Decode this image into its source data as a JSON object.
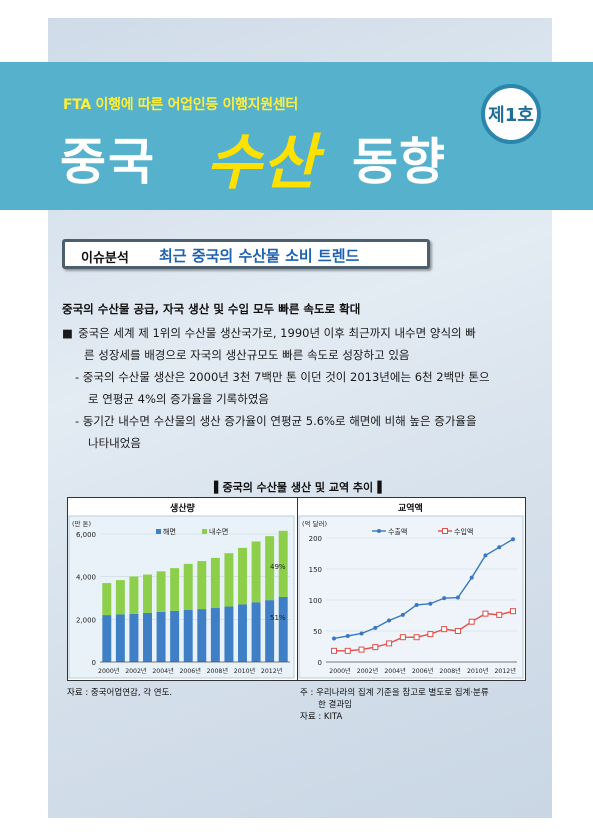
{
  "banner": {
    "subtitle": "FTA 이행에 따른 어업인등 이행지원센터",
    "title_part1": "중국",
    "title_part2": "수산",
    "title_part3": "동향",
    "issue_number": "제1호"
  },
  "section": {
    "label": "이슈분석",
    "title": "최근 중국의 수산물 소비 트렌드"
  },
  "body": {
    "headline": "중국의 수산물 공급, 자국 생산 및 수입 모두 빠른 속도로 확대",
    "bullet_marker": "■",
    "bullet_line1": "중국은 세계 제 1위의 수산물 생산국가로, 1990년 이후 최근까지 내수면 양식의 빠",
    "bullet_line2": "른 성장세를 배경으로 자국의 생산규모도 빠른 속도로 성장하고 있음",
    "sub1_line1": "- 중국의 수산물 생산은 2000년 3천 7백만 톤 이던 것이 2013년에는 6천 2백만 톤으",
    "sub1_line2": "로 연평균 4%의 증가율을 기록하였음",
    "sub2_line1": "- 동기간 내수면 수산물의 생산 증가율이 연평균 5.6%로 해면에 비해 높은 증가율을",
    "sub2_line2": "나타내었음"
  },
  "figure": {
    "title": "▌중국의 수산물 생산 및 교역 추이▐",
    "left_panel_title": "생산량",
    "right_panel_title": "교역액",
    "source_left": "자료 : 중국어업연감, 각 연도.",
    "note_right_line1": "주 : 우리나라의 집계 기준을 참고로 별도로 집계·분류",
    "note_right_line2": "한 결과임",
    "source_right": "자료 : KITA"
  },
  "chart_data": [
    {
      "type": "bar",
      "stacked": true,
      "title": "생산량",
      "ylabel": "(만 톤)",
      "ylim": [
        0,
        6000
      ],
      "yticks": [
        "0",
        "2,000",
        "4,000",
        "6,000"
      ],
      "categories": [
        "2000",
        "2001",
        "2002",
        "2003",
        "2004",
        "2005",
        "2006",
        "2007",
        "2008",
        "2009",
        "2010",
        "2011",
        "2012",
        "2013"
      ],
      "xtick_labels": [
        "2000년",
        "2002년",
        "2004년",
        "2006년",
        "2008년",
        "2010년",
        "2012년"
      ],
      "series": [
        {
          "name": "해면",
          "color": "#3f7fc6",
          "values": [
            2200,
            2230,
            2260,
            2300,
            2350,
            2400,
            2450,
            2480,
            2530,
            2600,
            2700,
            2800,
            2900,
            3050
          ]
        },
        {
          "name": "내수면",
          "color": "#8dcf4a",
          "values": [
            1500,
            1610,
            1750,
            1800,
            1900,
            2000,
            2150,
            2250,
            2350,
            2500,
            2650,
            2850,
            3000,
            3100
          ]
        }
      ],
      "annotations": [
        "49%",
        "51%"
      ],
      "legend": "top"
    },
    {
      "type": "line",
      "title": "교역액",
      "ylabel": "(억 달러)",
      "ylim": [
        0,
        200
      ],
      "yticks": [
        "0",
        "50",
        "100",
        "150",
        "200"
      ],
      "x": [
        "2000",
        "2001",
        "2002",
        "2003",
        "2004",
        "2005",
        "2006",
        "2007",
        "2008",
        "2009",
        "2010",
        "2011",
        "2012",
        "2013"
      ],
      "xtick_labels": [
        "2000년",
        "2002년",
        "2004년",
        "2006년",
        "2008년",
        "2010년",
        "2012년"
      ],
      "series": [
        {
          "name": "수출액",
          "color": "#3b78c0",
          "values": [
            38,
            42,
            46,
            55,
            67,
            76,
            92,
            94,
            103,
            104,
            136,
            172,
            185,
            198
          ]
        },
        {
          "name": "수입액",
          "color": "#e0504a",
          "values": [
            18,
            18,
            20,
            24,
            30,
            40,
            40,
            45,
            53,
            50,
            65,
            78,
            76,
            82
          ]
        }
      ],
      "legend": "top"
    }
  ]
}
